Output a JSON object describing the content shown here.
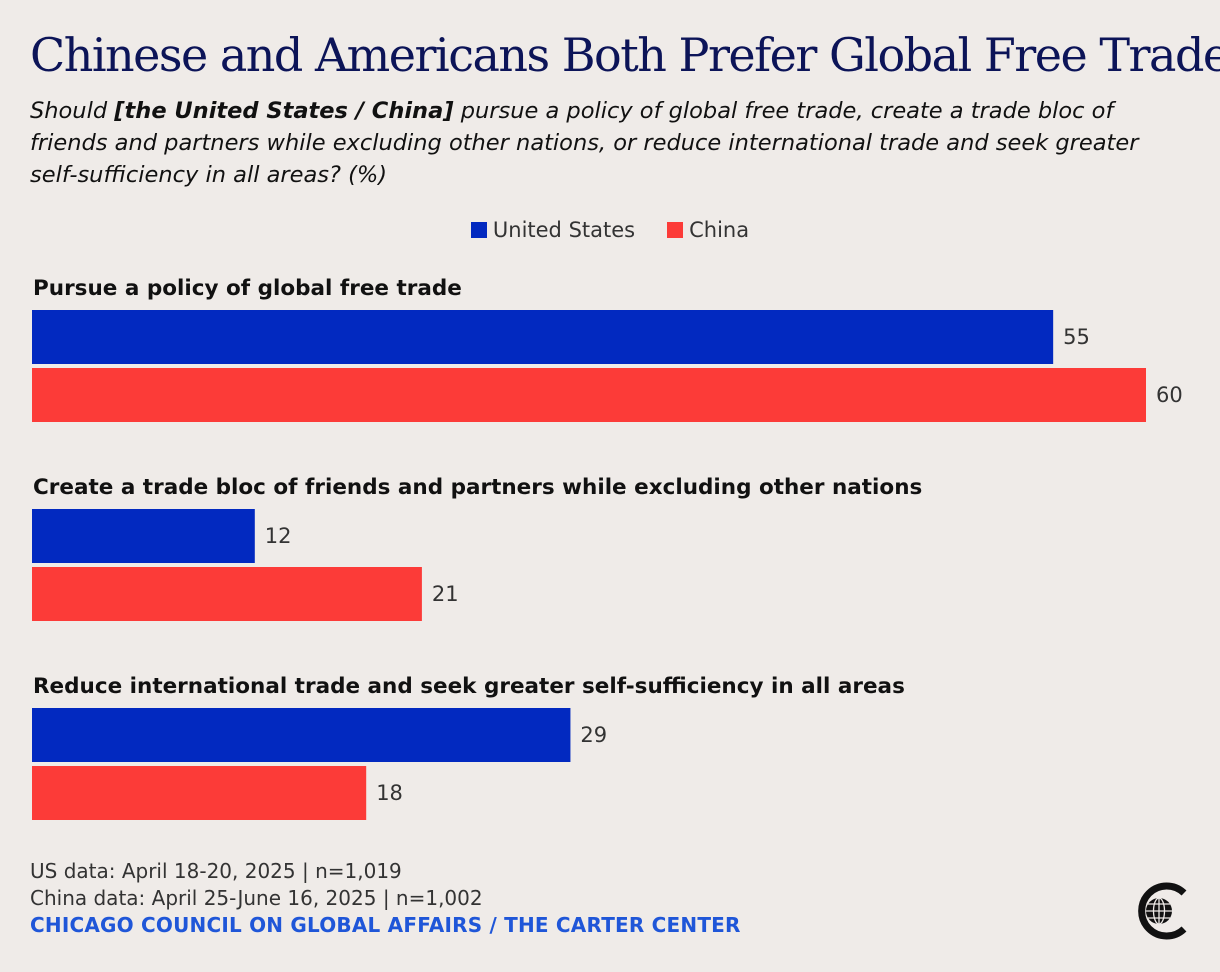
{
  "title": "Chinese and Americans Both Prefer Global Free Trade",
  "subtitle": {
    "before": "Should ",
    "bold": "[the United States / China]",
    "after": " pursue a policy of global free trade, create a trade bloc of friends and partners while excluding other nations, or reduce international trade and seek greater self-sufficiency in all areas? (%)"
  },
  "colors": {
    "us": "#0229c0",
    "china": "#fc3b38"
  },
  "chart_data": {
    "type": "bar",
    "orientation": "horizontal",
    "categories": [
      "Pursue a policy of global free trade",
      "Create a trade bloc of friends and partners while excluding other nations",
      "Reduce international trade and seek greater self-sufficiency in all areas"
    ],
    "series": [
      {
        "name": "United States",
        "values": [
          55,
          12,
          29
        ]
      },
      {
        "name": "China",
        "values": [
          60,
          21,
          18
        ]
      }
    ],
    "legend_position": "top-center",
    "xlim": [
      0,
      60
    ],
    "grid": false
  },
  "footer": {
    "us_data": "US data: April 18-20, 2025 | n=1,019",
    "china_data": "China data: April 25-June 16, 2025 | n=1,002",
    "source": "CHICAGO COUNCIL ON GLOBAL AFFAIRS / THE CARTER CENTER"
  },
  "logo": {
    "icon": "chicago-council-globe-logo"
  }
}
